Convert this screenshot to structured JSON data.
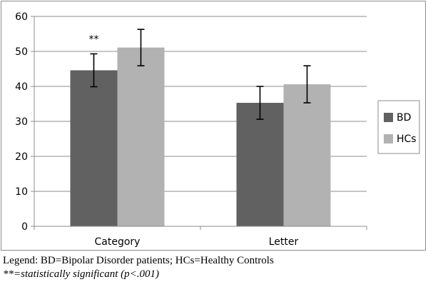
{
  "chart_data": {
    "type": "bar",
    "categories": [
      "Category",
      "Letter"
    ],
    "series": [
      {
        "name": "BD",
        "values": [
          44.6,
          35.3
        ],
        "error": [
          4.7,
          4.7
        ],
        "color": "#616161"
      },
      {
        "name": "HCs",
        "values": [
          51.1,
          40.6
        ],
        "error": [
          5.2,
          5.3
        ],
        "color": "#b2b2b2"
      }
    ],
    "ylim": [
      0,
      60
    ],
    "yticks": [
      "0",
      "10",
      "20",
      "30",
      "40",
      "50",
      "60"
    ],
    "grid": true,
    "legend_position": "right",
    "annotations": [
      {
        "text": "**",
        "category": "Category",
        "series": "BD"
      }
    ]
  },
  "legend_text": "Legend: BD=Bipolar Disorder patients; HCs=Healthy Controls",
  "footnote_text": "**=statistically significant (p<.001)"
}
